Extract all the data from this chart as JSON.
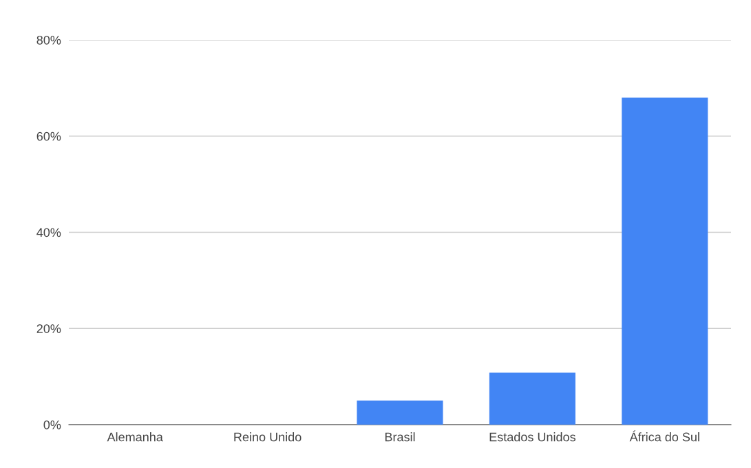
{
  "chart_data": {
    "type": "bar",
    "categories": [
      "Alemanha",
      "Reino Unido",
      "Brasil",
      "Estados Unidos",
      "África do Sul"
    ],
    "values": [
      0,
      0,
      5,
      10.8,
      68
    ],
    "color": "#4285f4",
    "ylim": [
      0,
      80
    ],
    "yticks": [
      {
        "value": 0,
        "label": "0%"
      },
      {
        "value": 20,
        "label": "20%"
      },
      {
        "value": 40,
        "label": "40%"
      },
      {
        "value": 60,
        "label": "60%"
      },
      {
        "value": 80,
        "label": "80%"
      }
    ],
    "grid": "y"
  }
}
